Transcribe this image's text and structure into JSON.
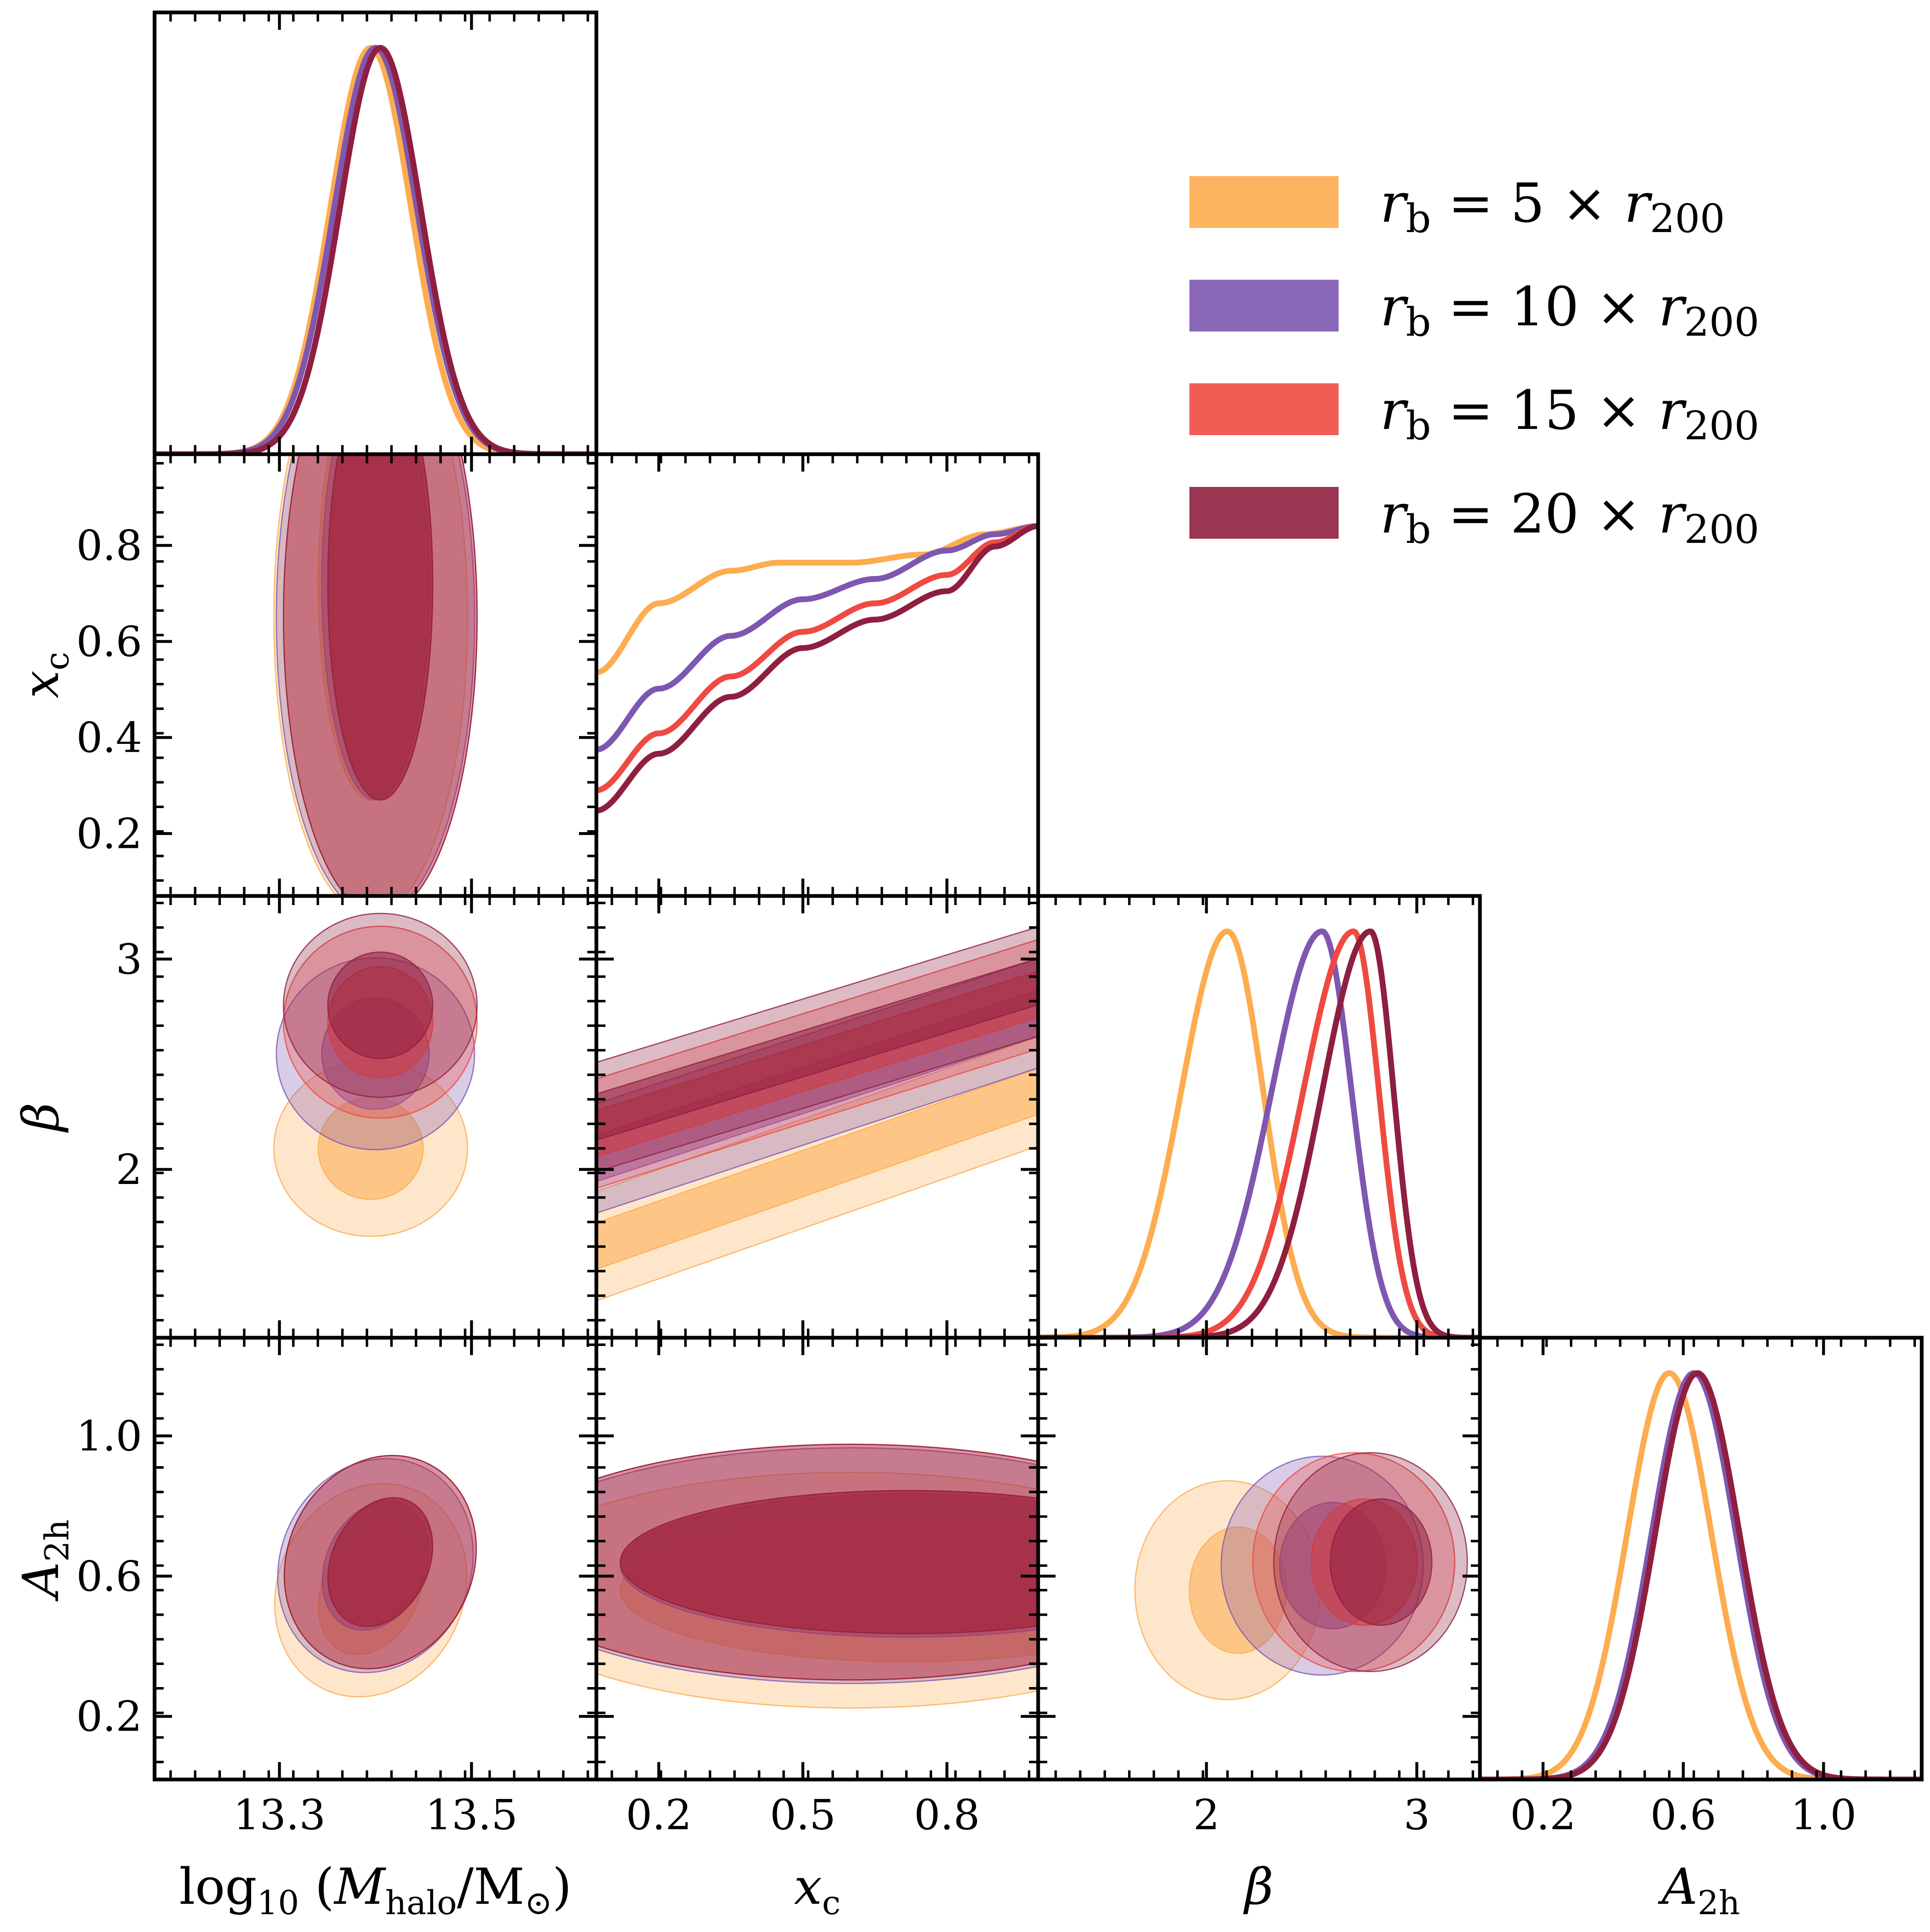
{
  "chart_data": {
    "type": "corner",
    "title": "",
    "parameters": [
      {
        "key": "logM",
        "label": "log10 (Mhalo/M⊙)",
        "range": [
          13.17,
          13.63
        ],
        "ticks": [
          13.3,
          13.5
        ],
        "tick_labels": [
          "13.3",
          "13.5"
        ]
      },
      {
        "key": "xc",
        "label": "xc",
        "range": [
          0.07,
          0.99
        ],
        "ticks": [
          0.2,
          0.5,
          0.8
        ],
        "tick_labels": [
          "0.2",
          "0.5",
          "0.8"
        ],
        "y_ticks": [
          0.2,
          0.4,
          0.6,
          0.8
        ],
        "y_tick_labels": [
          "0.2",
          "0.4",
          "0.6",
          "0.8"
        ]
      },
      {
        "key": "beta",
        "label": "β",
        "range": [
          1.2,
          3.3
        ],
        "ticks": [
          2,
          3
        ],
        "tick_labels": [
          "2",
          "3"
        ]
      },
      {
        "key": "A2h",
        "label": "A2h",
        "range": [
          0.02,
          1.28
        ],
        "ticks": [
          0.2,
          0.6,
          1.0
        ],
        "tick_labels": [
          "0.2",
          "0.6",
          "1.0"
        ]
      }
    ],
    "series": [
      {
        "name": "rb = 5 × r200",
        "color": "#fdac4f",
        "logM": {
          "mean": 13.395,
          "sigma": 0.042
        },
        "xc_curve": [
          [
            0.07,
            0.55
          ],
          [
            0.2,
            0.72
          ],
          [
            0.35,
            0.8
          ],
          [
            0.45,
            0.82
          ],
          [
            0.6,
            0.82
          ],
          [
            0.75,
            0.84
          ],
          [
            0.88,
            0.89
          ],
          [
            0.99,
            0.91
          ]
        ],
        "beta": {
          "mean": 2.1,
          "sigma_left": 0.22,
          "sigma_right": 0.17
        },
        "A2h": {
          "mean": 0.56,
          "sigma": 0.12
        },
        "beta_xc_slope": 0.8,
        "beta_xc_intercept": 1.58
      },
      {
        "name": "rb = 10 × r200",
        "color": "#7e57b0",
        "logM": {
          "mean": 13.4,
          "sigma": 0.043
        },
        "xc_curve": [
          [
            0.07,
            0.36
          ],
          [
            0.2,
            0.51
          ],
          [
            0.35,
            0.64
          ],
          [
            0.5,
            0.73
          ],
          [
            0.65,
            0.78
          ],
          [
            0.8,
            0.85
          ],
          [
            0.9,
            0.89
          ],
          [
            0.99,
            0.91
          ]
        ],
        "beta": {
          "mean": 2.55,
          "sigma_left": 0.24,
          "sigma_right": 0.14
        },
        "A2h": {
          "mean": 0.63,
          "sigma": 0.12
        },
        "beta_xc_slope": 0.75,
        "beta_xc_intercept": 2.0
      },
      {
        "name": "rb = 15 × r200",
        "color": "#ef4a42",
        "logM": {
          "mean": 13.405,
          "sigma": 0.042
        },
        "xc_curve": [
          [
            0.07,
            0.26
          ],
          [
            0.2,
            0.4
          ],
          [
            0.35,
            0.54
          ],
          [
            0.5,
            0.65
          ],
          [
            0.65,
            0.72
          ],
          [
            0.8,
            0.79
          ],
          [
            0.9,
            0.87
          ],
          [
            0.99,
            0.91
          ]
        ],
        "beta": {
          "mean": 2.7,
          "sigma_left": 0.24,
          "sigma_right": 0.12
        },
        "A2h": {
          "mean": 0.64,
          "sigma": 0.12
        },
        "beta_xc_slope": 0.72,
        "beta_xc_intercept": 2.12
      },
      {
        "name": "rb = 20 × r200",
        "color": "#8f1f3f",
        "logM": {
          "mean": 13.405,
          "sigma": 0.042
        },
        "xc_curve": [
          [
            0.07,
            0.21
          ],
          [
            0.2,
            0.35
          ],
          [
            0.35,
            0.49
          ],
          [
            0.5,
            0.61
          ],
          [
            0.65,
            0.68
          ],
          [
            0.8,
            0.75
          ],
          [
            0.9,
            0.86
          ],
          [
            0.99,
            0.91
          ]
        ],
        "beta": {
          "mean": 2.78,
          "sigma_left": 0.23,
          "sigma_right": 0.11
        },
        "A2h": {
          "mean": 0.64,
          "sigma": 0.12
        },
        "beta_xc_slope": 0.7,
        "beta_xc_intercept": 2.2
      }
    ],
    "legend": {
      "placement": "top-right"
    },
    "grid": false
  }
}
